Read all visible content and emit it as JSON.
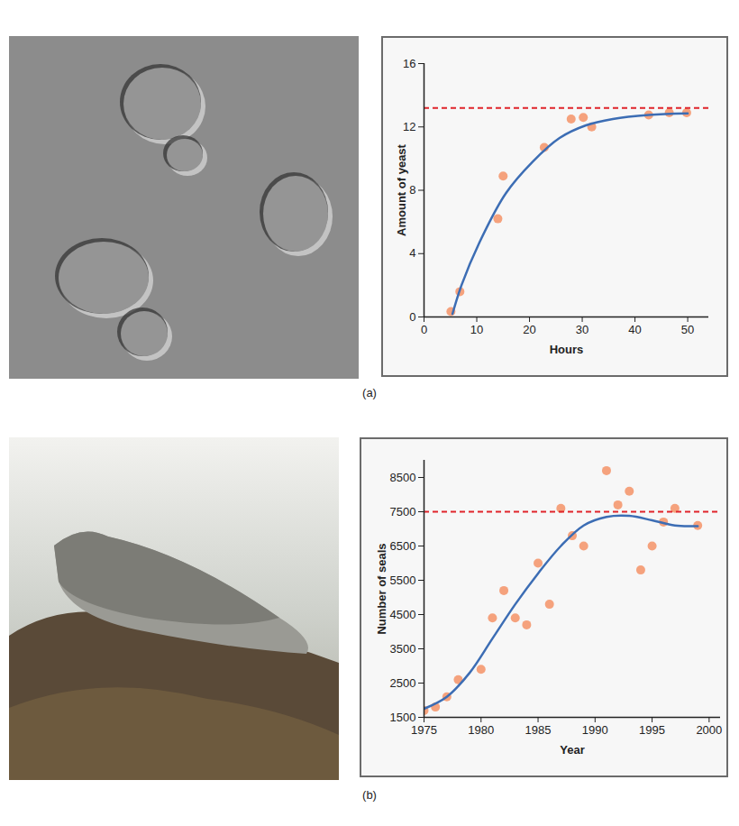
{
  "chart_data": [
    {
      "type": "scatter",
      "panel_label": "(a)",
      "x_label": "Hours",
      "y_label": "Amount of yeast",
      "xlim": [
        0,
        54
      ],
      "xticks": [
        0,
        10,
        20,
        30,
        40,
        50
      ],
      "ylim": [
        0,
        16
      ],
      "yticks": [
        0,
        4,
        8,
        12,
        16
      ],
      "grid": false,
      "series": [
        {
          "type": "scatter",
          "marker": "circle",
          "color": "#f5a27d",
          "x": [
            5.1,
            6.8,
            14.0,
            15.0,
            22.8,
            27.9,
            30.2,
            31.8,
            42.6,
            46.5,
            49.8
          ],
          "values": [
            0.34,
            1.6,
            6.2,
            8.9,
            10.7,
            12.5,
            12.6,
            12.0,
            12.75,
            12.9,
            12.9
          ]
        },
        {
          "type": "line",
          "line_style": "solid",
          "color": "#3c6db4",
          "x": [
            5.4,
            7.1,
            10.5,
            15.5,
            20.6,
            25.7,
            30.7,
            35.8,
            42.6,
            50
          ],
          "values": [
            0.2,
            2.0,
            4.7,
            7.8,
            9.8,
            11.3,
            12.1,
            12.5,
            12.75,
            12.85
          ]
        }
      ],
      "reference_line": {
        "value": 13.2,
        "color": "#e0242b",
        "line_style": "dashed"
      }
    },
    {
      "type": "scatter",
      "panel_label": "(b)",
      "x_label": "Year",
      "y_label": "Number of seals",
      "xlim": [
        1975,
        2001
      ],
      "xticks": [
        1975,
        1980,
        1985,
        1990,
        1995,
        2000
      ],
      "ylim": [
        1500,
        9000
      ],
      "yticks": [
        1500,
        2500,
        3500,
        4500,
        5500,
        6500,
        7500,
        8500
      ],
      "grid": false,
      "series": [
        {
          "type": "scatter",
          "marker": "circle",
          "color": "#f5a27d",
          "x": [
            1975,
            1976,
            1977,
            1978,
            1980,
            1981,
            1982,
            1983,
            1984,
            1985,
            1986,
            1987,
            1988,
            1989,
            1991,
            1992,
            1993,
            1994,
            1995,
            1996,
            1997,
            1999
          ],
          "values": [
            1700,
            1800,
            2100,
            2600,
            2900,
            4400,
            5200,
            4400,
            4200,
            6000,
            4800,
            7600,
            6800,
            6500,
            8700,
            7700,
            8100,
            5800,
            6500,
            7200,
            7600,
            7100
          ]
        },
        {
          "type": "line",
          "line_style": "solid",
          "color": "#3c6db4",
          "x": [
            1975,
            1977,
            1979,
            1981,
            1983,
            1985,
            1987,
            1989,
            1991,
            1993,
            1995,
            1997,
            1999
          ],
          "values": [
            1750,
            2100,
            2800,
            3800,
            4800,
            5700,
            6500,
            7100,
            7350,
            7380,
            7250,
            7100,
            7080
          ]
        }
      ],
      "reference_line": {
        "value": 7500,
        "color": "#e0242b",
        "line_style": "dashed"
      }
    }
  ]
}
